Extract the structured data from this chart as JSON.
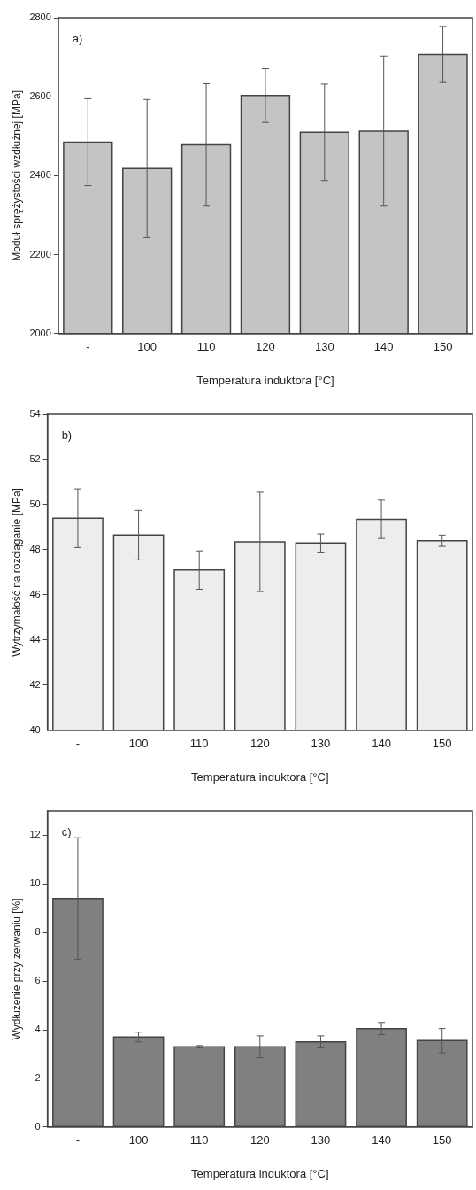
{
  "chart_data": [
    {
      "type": "bar",
      "categories": [
        "-",
        "100",
        "110",
        "120",
        "130",
        "140",
        "150"
      ],
      "xlabel": "Temperatura induktora [°C]",
      "ylabel": "Moduł sprężystości wzdłużnej [MPa]",
      "annotations": [
        "a)"
      ],
      "series": [
        {
          "color": "#c4c4c4",
          "values": [
            2485,
            2418,
            2478,
            2603,
            2510,
            2513,
            2707
          ],
          "errors": [
            110,
            175,
            155,
            68,
            122,
            190,
            71
          ]
        }
      ],
      "ylim": [
        2000,
        2800
      ],
      "yticks": [
        2000,
        2200,
        2400,
        2600,
        2800
      ],
      "grid": false,
      "legend": false
    },
    {
      "type": "bar",
      "categories": [
        "-",
        "100",
        "110",
        "120",
        "130",
        "140",
        "150"
      ],
      "xlabel": "Temperatura induktora [°C]",
      "ylabel": "Wytrzymałość na rozciąganie [MPa]",
      "annotations": [
        "b)"
      ],
      "series": [
        {
          "color": "#eeecee",
          "values": [
            49.4,
            48.65,
            47.1,
            48.35,
            48.3,
            49.35,
            48.4
          ],
          "errors": [
            1.3,
            1.1,
            0.85,
            2.2,
            0.4,
            0.85,
            0.25
          ]
        }
      ],
      "ylim": [
        40,
        54
      ],
      "yticks": [
        40,
        42,
        44,
        46,
        48,
        50,
        52,
        54
      ],
      "grid": false,
      "legend": false
    },
    {
      "type": "bar",
      "categories": [
        "-",
        "100",
        "110",
        "120",
        "130",
        "140",
        "150"
      ],
      "xlabel": "Temperatura induktora [°C]",
      "ylabel": "Wydłużenie przy zerwaniu [%]",
      "annotations": [
        "c)"
      ],
      "series": [
        {
          "color": "#808080",
          "values": [
            9.4,
            3.7,
            3.3,
            3.3,
            3.5,
            4.05,
            3.55
          ],
          "errors": [
            2.5,
            0.2,
            0.05,
            0.45,
            0.25,
            0.25,
            0.5
          ]
        }
      ],
      "ylim": [
        0,
        13
      ],
      "yticks": [
        0,
        2,
        4,
        6,
        8,
        10,
        12
      ],
      "grid": false,
      "legend": false
    }
  ]
}
